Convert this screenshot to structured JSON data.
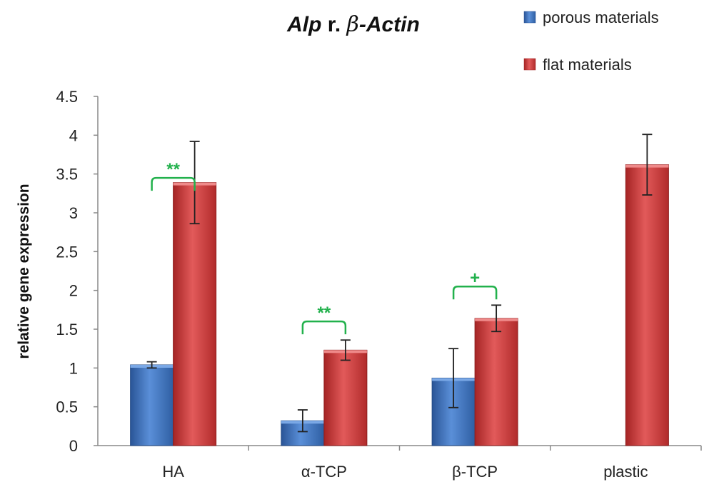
{
  "chart_data": {
    "type": "bar",
    "title_parts": [
      "Alp",
      " r. ",
      "β",
      "-Actin"
    ],
    "title": "Alp r. β-Actin",
    "ylabel": "relative gene expression",
    "xlabel": "",
    "ylim": [
      0,
      4.5
    ],
    "yticks": [
      0,
      0.5,
      1,
      1.5,
      2,
      2.5,
      3,
      3.5,
      4,
      4.5
    ],
    "ytick_labels": [
      "0",
      "0.5",
      "1",
      "1.5",
      "2",
      "2.5",
      "3",
      "3.5",
      "4",
      "4.5"
    ],
    "categories": [
      "HA",
      "α-TCP",
      "β-TCP",
      "plastic"
    ],
    "series": [
      {
        "name": "porous materials",
        "color": "#3f72b9",
        "values": [
          1.04,
          0.32,
          0.87,
          null
        ],
        "errors": [
          0.04,
          0.14,
          0.38,
          null
        ]
      },
      {
        "name": "flat materials",
        "color": "#c93636",
        "values": [
          3.39,
          1.23,
          1.64,
          3.62
        ],
        "errors": [
          0.53,
          0.13,
          0.17,
          0.39
        ]
      }
    ],
    "annotations": [
      {
        "category_index": 0,
        "label": "**",
        "bracket_at": 3.45
      },
      {
        "category_index": 1,
        "label": "**",
        "bracket_at": 1.6
      },
      {
        "category_index": 2,
        "label": "+",
        "bracket_at": 2.05
      }
    ],
    "legend_position": "top-right",
    "annotation_color": "#22b14c"
  }
}
